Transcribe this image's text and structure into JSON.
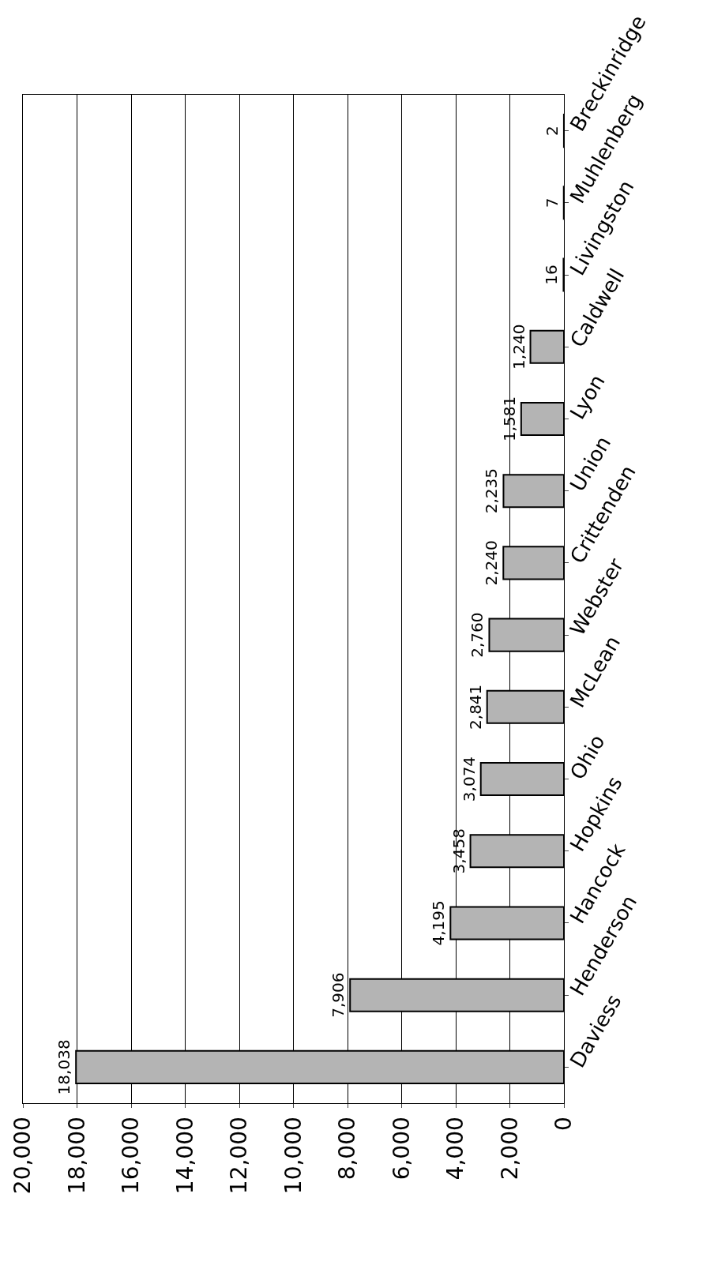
{
  "chart_data": {
    "type": "bar",
    "orientation": "horizontal",
    "categories": [
      "Breckinridge",
      "Muhlenberg",
      "Livingston",
      "Caldwell",
      "Lyon",
      "Union",
      "Crittenden",
      "Webster",
      "McLean",
      "Ohio",
      "Hopkins",
      "Hancock",
      "Henderson",
      "Daviess"
    ],
    "values": [
      2,
      7,
      16,
      1240,
      1581,
      2235,
      2240,
      2760,
      2841,
      3074,
      3458,
      4195,
      7906,
      18038
    ],
    "color": "#b4b4b4",
    "xlim": [
      20000,
      0
    ],
    "xticks": [
      {
        "value": 20000,
        "label": "20,000"
      },
      {
        "value": 18000,
        "label": "18,000"
      },
      {
        "value": 16000,
        "label": "16,000"
      },
      {
        "value": 14000,
        "label": "14,000"
      },
      {
        "value": 12000,
        "label": "12,000"
      },
      {
        "value": 10000,
        "label": "10,000"
      },
      {
        "value": 8000,
        "label": "8,000"
      },
      {
        "value": 6000,
        "label": "6,000"
      },
      {
        "value": 4000,
        "label": "4,000"
      },
      {
        "value": 2000,
        "label": "2,000"
      },
      0
    ],
    "value_labels": [
      "2",
      "7",
      "16",
      "1,240",
      "1,581",
      "2,235",
      "2,240",
      "2,760",
      "2,841",
      "3,074",
      "3,458",
      "4,195",
      "7,906",
      "18,038"
    ],
    "grid": "x"
  }
}
